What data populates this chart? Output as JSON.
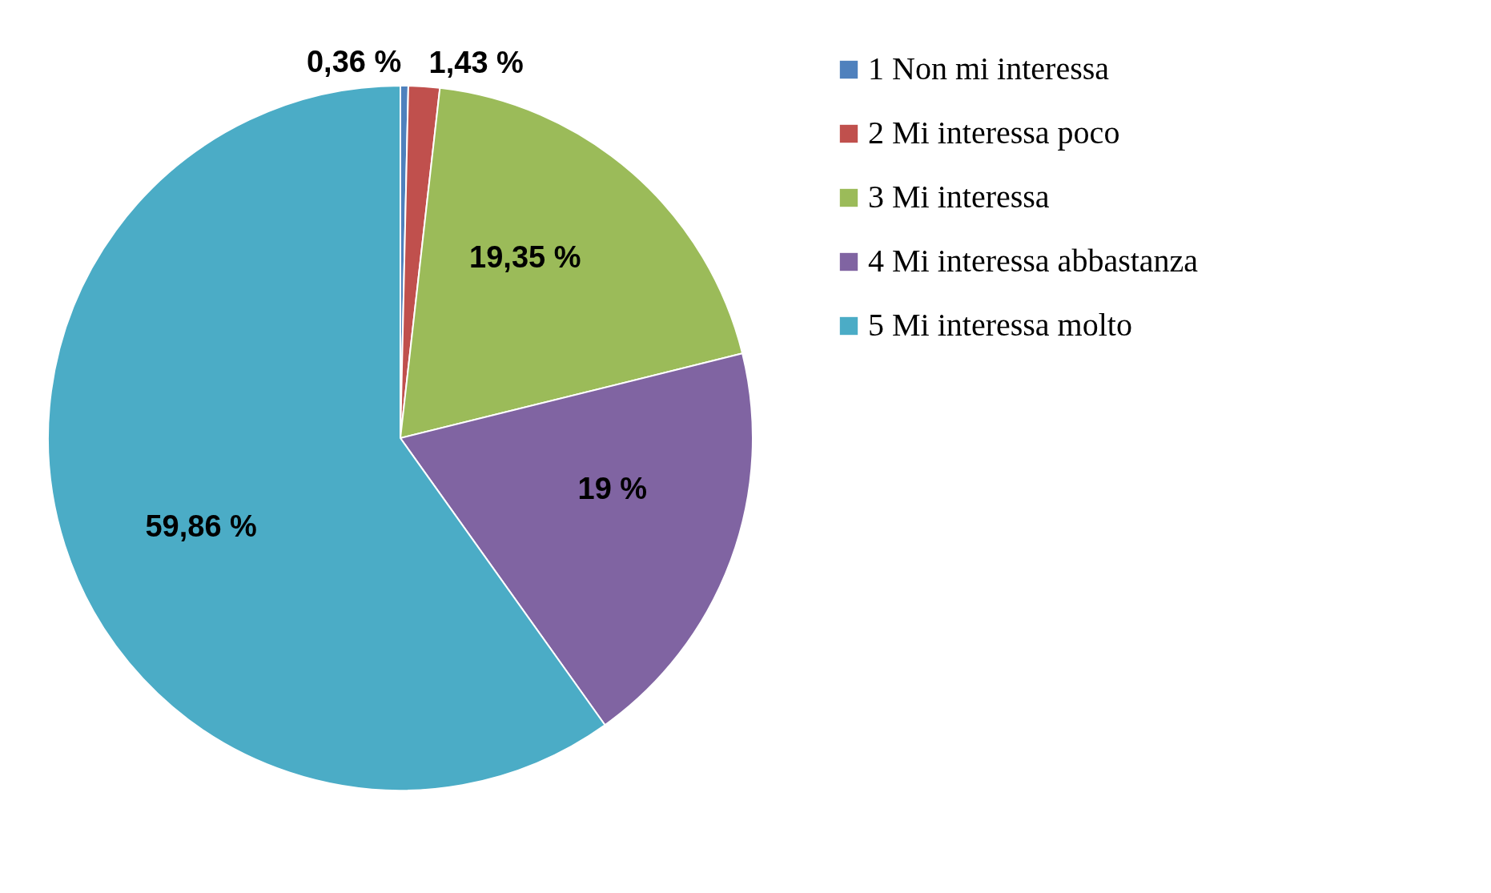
{
  "chart_data": {
    "type": "pie",
    "categories": [
      "1 Non mi interessa",
      "2 Mi interessa poco",
      "3 Mi interessa",
      "4 Mi interessa abbastanza",
      "5 Mi interessa molto"
    ],
    "values": [
      0.36,
      1.43,
      19.35,
      19,
      59.86
    ],
    "colors": [
      "#4f81bd",
      "#c0504d",
      "#9bbb59",
      "#8064a2",
      "#4bacc6"
    ],
    "value_labels": [
      "0,36 %",
      "1,43 %",
      "19,35 %",
      "19 %",
      "59,86 %"
    ],
    "legend": "right"
  }
}
